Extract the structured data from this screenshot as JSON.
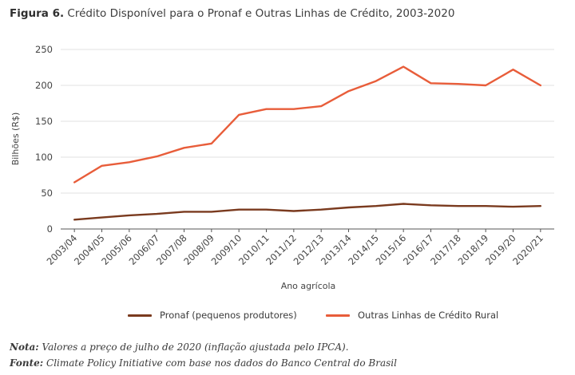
{
  "figure": {
    "number_label": "Figura 6.",
    "title_text": "Crédito Disponível para o Pronaf e Outras Linhas de Crédito, 2003-2020"
  },
  "chart_data": {
    "type": "line",
    "title": "Crédito Disponível para o Pronaf e Outras Linhas de Crédito, 2003-2020",
    "xlabel": "Ano agrícola",
    "ylabel": "Bilhões (R$)",
    "ylim": [
      0,
      250
    ],
    "yticks": [
      0,
      50,
      100,
      150,
      200,
      250
    ],
    "grid": "horizontal",
    "legend_position": "bottom",
    "categories": [
      "2003/04",
      "2004/05",
      "2005/06",
      "2006/07",
      "2007/08",
      "2008/09",
      "2009/10",
      "2010/11",
      "2011/12",
      "2012/13",
      "2013/14",
      "2014/15",
      "2015/16",
      "2016/17",
      "2017/18",
      "2018/19",
      "2019/20",
      "2020/21"
    ],
    "series": [
      {
        "name": "Pronaf (pequenos produtores)",
        "color": "#7a3a1e",
        "values": [
          13,
          16,
          19,
          21,
          24,
          24,
          27,
          27,
          25,
          27,
          30,
          32,
          35,
          33,
          32,
          32,
          31,
          32
        ]
      },
      {
        "name": "Outras Linhas de Crédito Rural",
        "color": "#e85d3a",
        "values": [
          65,
          88,
          93,
          101,
          113,
          119,
          159,
          167,
          167,
          171,
          192,
          206,
          226,
          203,
          202,
          200,
          222,
          200
        ]
      }
    ]
  },
  "notes": {
    "nota_label": "Nota:",
    "nota_text": " Valores a preço de julho de 2020 (inflação ajustada pelo IPCA).",
    "fonte_label": "Fonte:",
    "fonte_text": " Climate Policy Initiative com base nos dados do Banco Central do Brasil"
  },
  "colors": {
    "grid": "#d9d9d9",
    "axis": "#555555"
  }
}
